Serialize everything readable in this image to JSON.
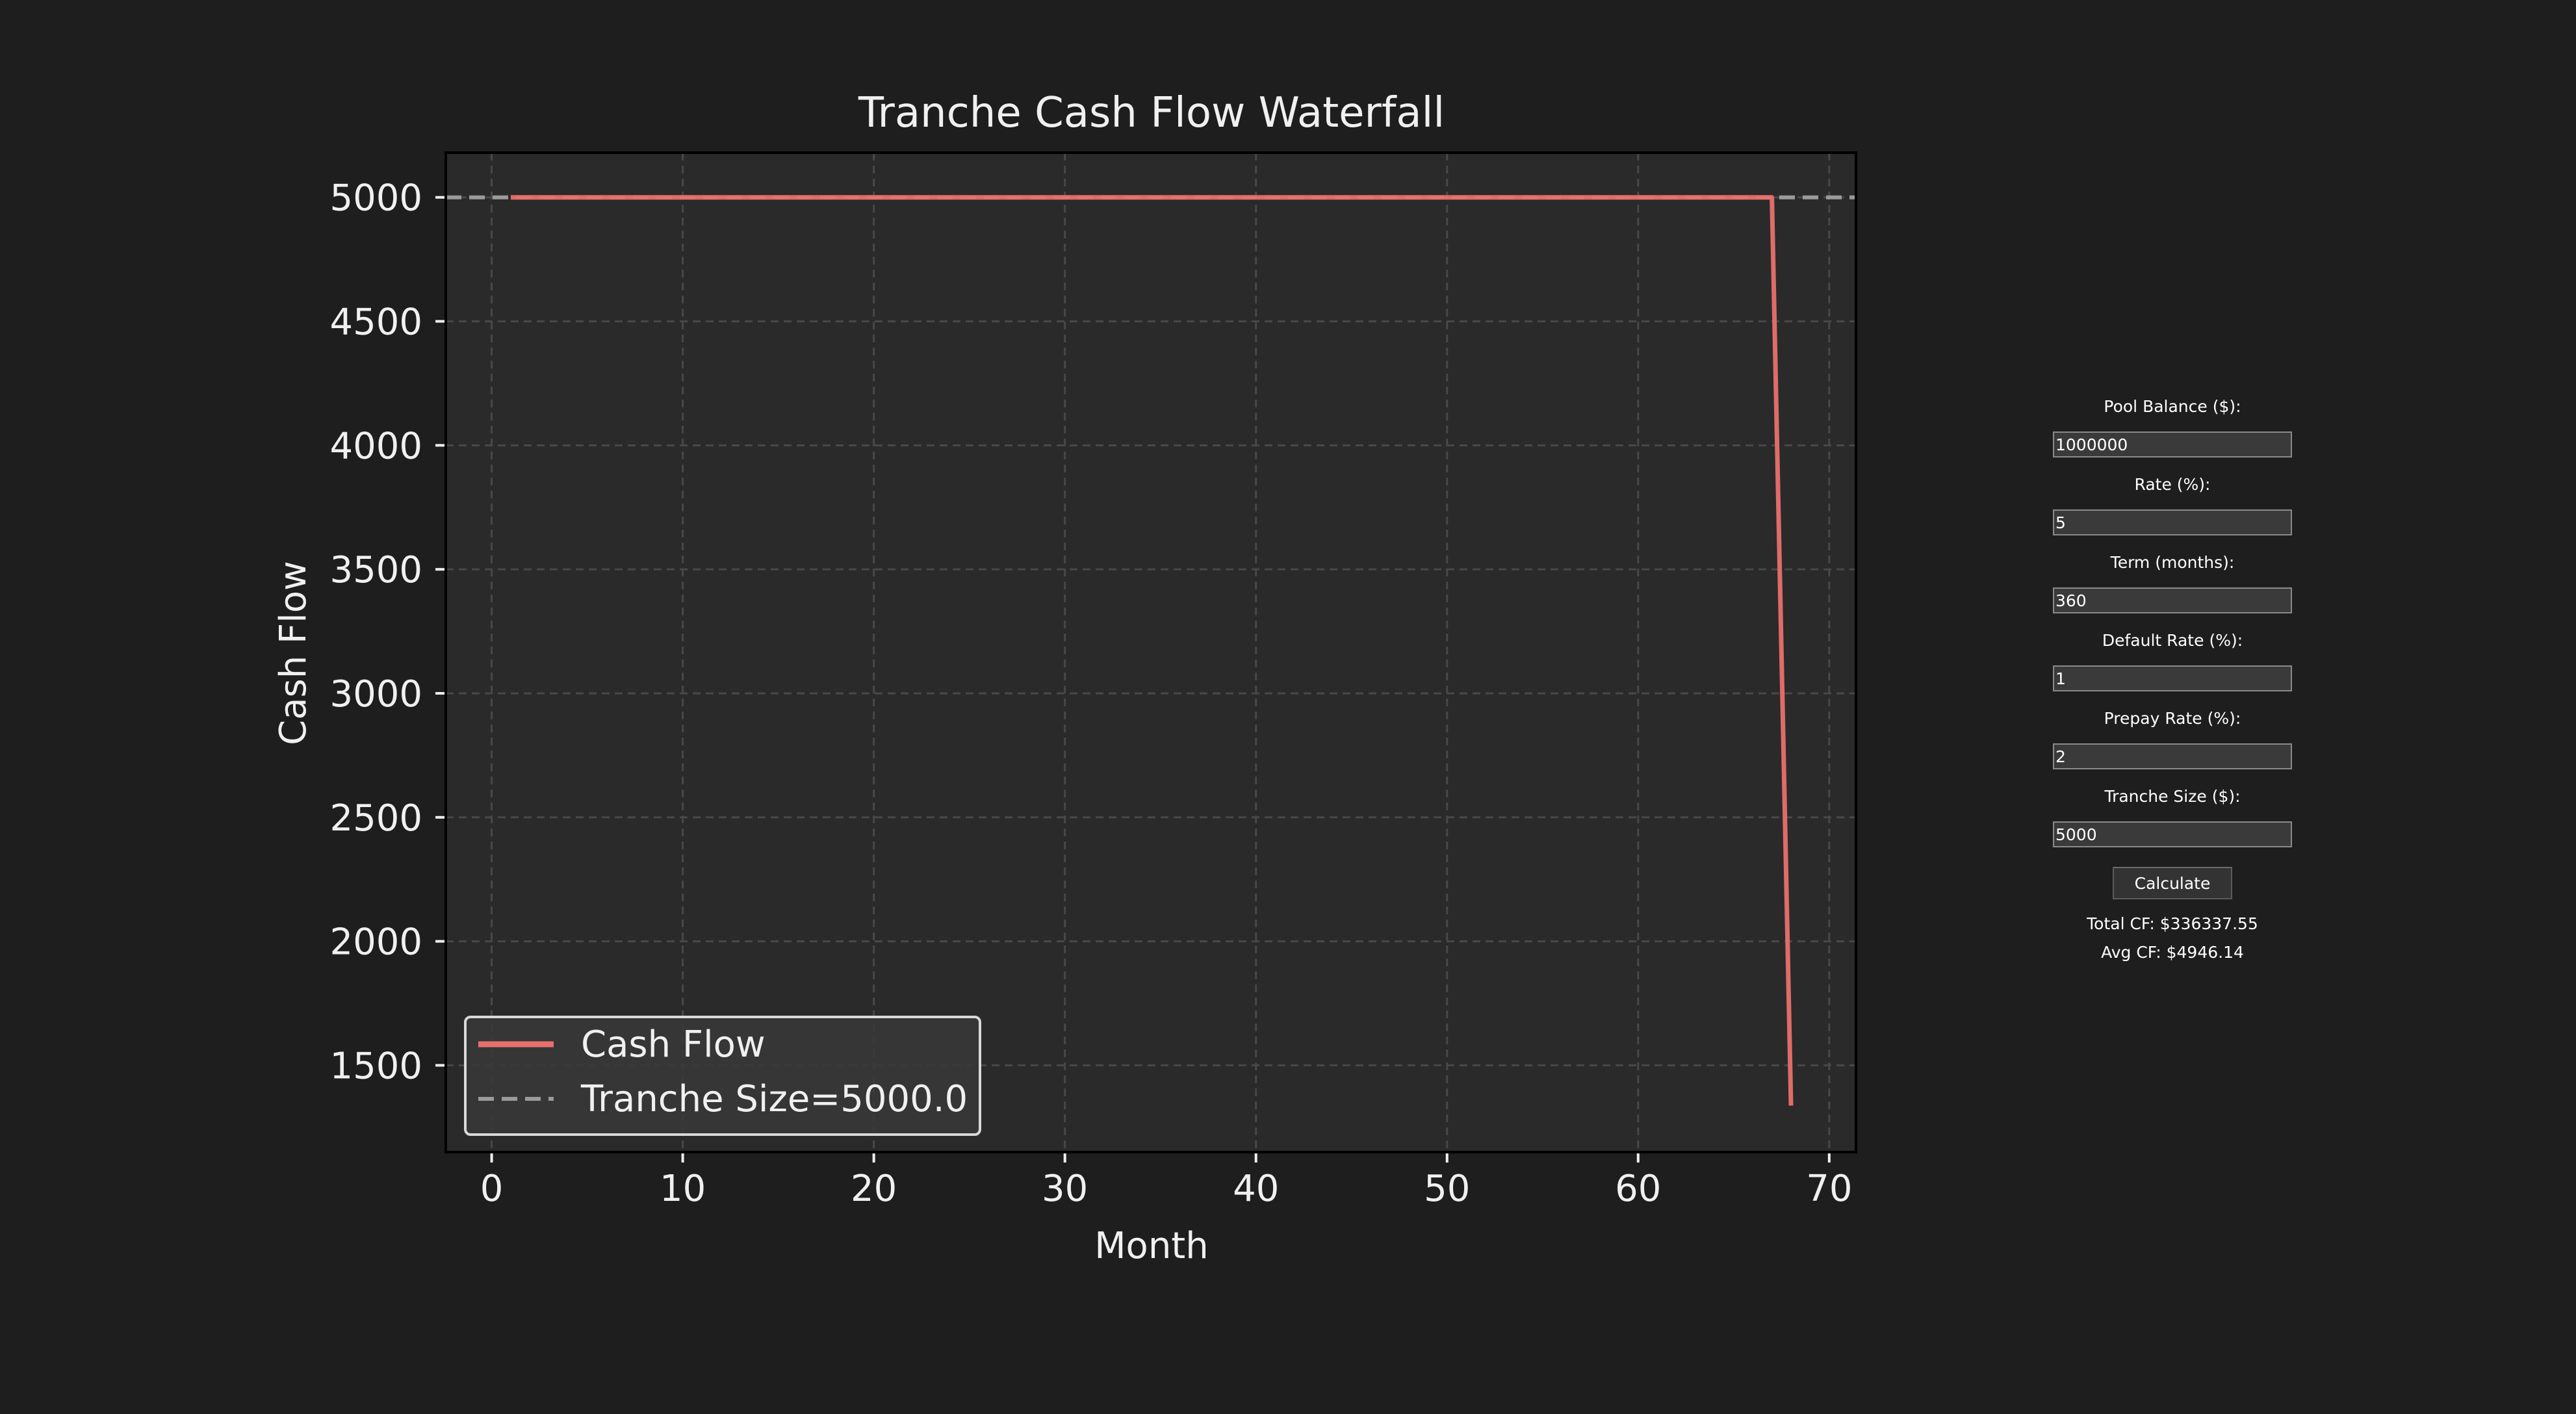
{
  "chart_data": {
    "type": "line",
    "title": "Tranche Cash Flow Waterfall",
    "xlabel": "Month",
    "ylabel": "Cash Flow",
    "xlim": [
      -2.4,
      71.4
    ],
    "ylim": [
      1150,
      5180
    ],
    "xticks": [
      0,
      10,
      20,
      30,
      40,
      50,
      60,
      70
    ],
    "yticks": [
      1500,
      2000,
      2500,
      3000,
      3500,
      4000,
      4500,
      5000
    ],
    "grid": true,
    "legend_position": "lower-left",
    "series": [
      {
        "name": "Cash Flow",
        "style": "solid",
        "color": "#e8706c",
        "x": [
          1,
          2,
          3,
          4,
          5,
          6,
          7,
          8,
          9,
          10,
          11,
          12,
          13,
          14,
          15,
          16,
          17,
          18,
          19,
          20,
          21,
          22,
          23,
          24,
          25,
          26,
          27,
          28,
          29,
          30,
          31,
          32,
          33,
          34,
          35,
          36,
          37,
          38,
          39,
          40,
          41,
          42,
          43,
          44,
          45,
          46,
          47,
          48,
          49,
          50,
          51,
          52,
          53,
          54,
          55,
          56,
          57,
          58,
          59,
          60,
          61,
          62,
          63,
          64,
          65,
          66,
          67,
          68
        ],
        "y": [
          5000,
          5000,
          5000,
          5000,
          5000,
          5000,
          5000,
          5000,
          5000,
          5000,
          5000,
          5000,
          5000,
          5000,
          5000,
          5000,
          5000,
          5000,
          5000,
          5000,
          5000,
          5000,
          5000,
          5000,
          5000,
          5000,
          5000,
          5000,
          5000,
          5000,
          5000,
          5000,
          5000,
          5000,
          5000,
          5000,
          5000,
          5000,
          5000,
          5000,
          5000,
          5000,
          5000,
          5000,
          5000,
          5000,
          5000,
          5000,
          5000,
          5000,
          5000,
          5000,
          5000,
          5000,
          5000,
          5000,
          5000,
          5000,
          5000,
          5000,
          5000,
          5000,
          5000,
          5000,
          5000,
          5000,
          5000,
          1337.55
        ]
      },
      {
        "name": "Tranche Size=5000.0",
        "style": "dashed",
        "color": "#9a9a9a",
        "y_constant": 5000
      }
    ]
  },
  "controls": {
    "pool_balance_label": "Pool Balance ($):",
    "pool_balance_value": "1000000",
    "rate_label": "Rate (%):",
    "rate_value": "5",
    "term_label": "Term (months):",
    "term_value": "360",
    "default_rate_label": "Default Rate (%):",
    "default_rate_value": "1",
    "prepay_rate_label": "Prepay Rate (%):",
    "prepay_rate_value": "2",
    "tranche_size_label": "Tranche Size ($):",
    "tranche_size_value": "5000",
    "calculate_label": "Calculate",
    "total_cf": "Total CF: $336337.55",
    "avg_cf": "Avg CF: $4946.14"
  },
  "colors": {
    "background": "#1e1e1e",
    "plot_background": "#2a2a2a",
    "cash_flow_line": "#e8706c",
    "tranche_line": "#9a9a9a",
    "text": "#f0f0f0"
  }
}
